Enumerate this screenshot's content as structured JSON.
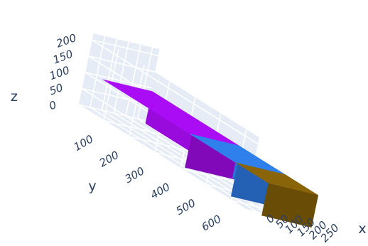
{
  "chart_data": {
    "type": "bar3d",
    "title": "",
    "axes": {
      "x": {
        "label": "x",
        "ticks": [
          0,
          50,
          100,
          150,
          200,
          250
        ],
        "range": [
          0,
          280
        ]
      },
      "y": {
        "label": "y",
        "ticks": [
          100,
          200,
          300,
          400,
          500,
          600
        ],
        "range": [
          0,
          650
        ]
      },
      "z": {
        "label": "z",
        "ticks": [
          0,
          50,
          100,
          150,
          200
        ],
        "range": [
          0,
          220
        ]
      }
    },
    "grid": true,
    "legend": "none",
    "boxes": [
      {
        "x": [
          40,
          250
        ],
        "y": [
          30,
          380
        ],
        "z": [
          0,
          100
        ],
        "color": "#aa0cf5"
      },
      {
        "x": [
          40,
          250
        ],
        "y": [
          370,
          560
        ],
        "z": [
          0,
          100
        ],
        "color": "#2f80ed"
      },
      {
        "x": [
          40,
          250
        ],
        "y": [
          550,
          680
        ],
        "z": [
          0,
          100
        ],
        "color": "#8a6408"
      }
    ]
  }
}
